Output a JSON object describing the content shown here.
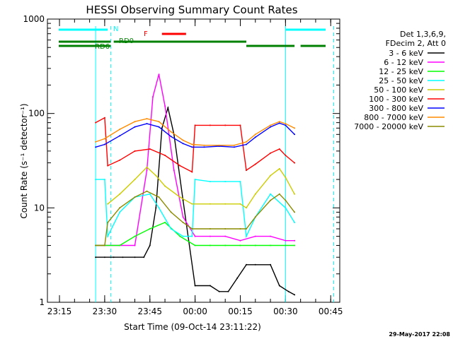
{
  "chart_data": {
    "type": "line",
    "title": "HESSI Observing Summary Count Rates",
    "xlabel": "Start Time (09-Oct-14 23:11:22)",
    "ylabel": "Count Rate (s⁻¹ detector⁻¹)",
    "y_scale": "log",
    "ylim": [
      1,
      1000
    ],
    "y_ticks": [
      1,
      10,
      100,
      1000
    ],
    "y_tick_labels": [
      "1",
      "10",
      "100",
      "1000"
    ],
    "xlim": [
      "23:11",
      "00:48"
    ],
    "x_ticks": [
      "23:15",
      "23:30",
      "23:45",
      "00:00",
      "00:15",
      "00:30",
      "00:45"
    ],
    "x_tick_labels": [
      "23:15",
      "23:30",
      "23:45",
      "00:00",
      "00:15",
      "00:30",
      "00:45"
    ],
    "grid": false,
    "legend_position": "right",
    "legend_header": [
      "Det 1,3,6,9,",
      "FDecim 2, Att 0"
    ],
    "series": [
      {
        "name": "3 - 6 keV",
        "color": "#000000",
        "x": [
          "23:27",
          "23:30",
          "23:33",
          "23:36",
          "23:40",
          "23:43",
          "23:45",
          "23:47",
          "23:49",
          "23:51",
          "23:53",
          "23:56",
          "00:00",
          "00:05",
          "00:08",
          "00:11",
          "00:14",
          "00:17",
          "00:20",
          "00:25",
          "00:28",
          "00:31",
          "00:33"
        ],
        "y": [
          3,
          3,
          3,
          3,
          3,
          3,
          4,
          10,
          70,
          115,
          60,
          12,
          1.5,
          1.5,
          1.3,
          1.3,
          1.8,
          2.5,
          2.5,
          2.5,
          1.5,
          1.3,
          1.2
        ]
      },
      {
        "name": "6 - 12 keV",
        "color": "#ff00ff",
        "x": [
          "23:27",
          "23:30",
          "23:35",
          "23:40",
          "23:44",
          "23:46",
          "23:48",
          "23:50",
          "23:53",
          "23:56",
          "00:00",
          "00:05",
          "00:10",
          "00:15",
          "00:20",
          "00:25",
          "00:30",
          "00:33"
        ],
        "y": [
          4,
          4,
          4,
          4,
          25,
          150,
          260,
          120,
          25,
          8,
          5,
          5,
          5,
          4.5,
          5,
          5,
          4.5,
          4.5
        ]
      },
      {
        "name": "12 - 25 keV",
        "color": "#00ff00",
        "x": [
          "23:27",
          "23:30",
          "23:35",
          "23:40",
          "23:45",
          "23:50",
          "23:55",
          "00:00",
          "00:05",
          "00:10",
          "00:15",
          "00:20",
          "00:25",
          "00:30",
          "00:33"
        ],
        "y": [
          4,
          4,
          4,
          5,
          6,
          7,
          5,
          4,
          4,
          4,
          4,
          4,
          4,
          4,
          4
        ]
      },
      {
        "name": "25 - 50 keV",
        "color": "#00ffff",
        "x": [
          "23:27",
          "23:30",
          "23:31",
          "23:35",
          "23:40",
          "23:45",
          "23:48",
          "23:52",
          "23:56",
          "23:59",
          "00:00",
          "00:05",
          "00:10",
          "00:15",
          "00:17",
          "00:20",
          "00:25",
          "00:30",
          "00:33"
        ],
        "y": [
          20,
          20,
          5,
          9,
          13,
          14,
          10,
          6,
          5,
          5,
          20,
          19,
          19,
          19,
          5,
          8,
          14,
          10,
          7
        ]
      },
      {
        "name": "50 - 100 keV",
        "color": "#cccc00",
        "x": [
          "23:31",
          "23:35",
          "23:40",
          "23:44",
          "23:47",
          "23:50",
          "23:55",
          "23:59",
          "00:05",
          "00:10",
          "00:15",
          "00:17",
          "00:20",
          "00:25",
          "00:28",
          "00:30",
          "00:33"
        ],
        "y": [
          11,
          14,
          20,
          27,
          22,
          17,
          13,
          11,
          11,
          11,
          11,
          10,
          14,
          22,
          26,
          21,
          14
        ]
      },
      {
        "name": "100 - 300 keV",
        "color": "#ff0000",
        "x": [
          "23:27",
          "23:30",
          "23:31",
          "23:35",
          "23:40",
          "23:45",
          "23:50",
          "23:55",
          "23:59",
          "00:00",
          "00:05",
          "00:10",
          "00:15",
          "00:17",
          "00:20",
          "00:25",
          "00:28",
          "00:30",
          "00:33"
        ],
        "y": [
          80,
          90,
          28,
          32,
          40,
          42,
          36,
          28,
          24,
          75,
          75,
          75,
          75,
          25,
          29,
          38,
          42,
          36,
          30
        ]
      },
      {
        "name": "300 - 800 keV",
        "color": "#0000ff",
        "x": [
          "23:27",
          "23:30",
          "23:35",
          "23:40",
          "23:44",
          "23:48",
          "23:52",
          "23:56",
          "23:59",
          "00:03",
          "00:08",
          "00:13",
          "00:17",
          "00:20",
          "00:25",
          "00:28",
          "00:30",
          "00:33"
        ],
        "y": [
          44,
          47,
          58,
          72,
          78,
          72,
          57,
          48,
          44,
          44,
          45,
          44,
          47,
          56,
          72,
          79,
          75,
          60
        ]
      },
      {
        "name": "800 - 7000 keV",
        "color": "#ff8c00",
        "x": [
          "23:27",
          "23:30",
          "23:35",
          "23:40",
          "23:44",
          "23:48",
          "23:52",
          "23:56",
          "23:59",
          "00:03",
          "00:08",
          "00:13",
          "00:17",
          "00:20",
          "00:25",
          "00:28",
          "00:30",
          "00:33"
        ],
        "y": [
          50,
          54,
          68,
          82,
          88,
          82,
          64,
          52,
          47,
          46,
          46,
          46,
          50,
          60,
          75,
          82,
          78,
          70
        ]
      },
      {
        "name": "7000 - 20000 keV",
        "color": "#8b8b00",
        "x": [
          "23:27",
          "23:30",
          "23:31",
          "23:35",
          "23:40",
          "23:44",
          "23:48",
          "23:52",
          "23:56",
          "23:59",
          "00:05",
          "00:10",
          "00:15",
          "00:17",
          "00:20",
          "00:25",
          "00:28",
          "00:30",
          "00:33"
        ],
        "y": [
          4,
          4,
          7,
          10,
          13,
          15,
          13,
          9,
          7,
          6,
          6,
          6,
          6,
          6,
          8,
          12,
          14,
          12,
          9
        ]
      }
    ],
    "annotations": [
      {
        "label": "N",
        "color": "#00ffff",
        "segments": [
          [
            "23:11",
            "23:31"
          ],
          [
            "00:30",
            "00:48"
          ]
        ]
      },
      {
        "label": "F",
        "color": "#ff0000",
        "segments": [
          [
            "23:49",
            "23:57"
          ]
        ]
      },
      {
        "label": "RD0",
        "color": "#008000",
        "segments": [
          [
            "23:11",
            "23:32"
          ],
          [
            "23:33",
            "00:17"
          ]
        ]
      },
      {
        "label": "RD6",
        "color": "#008000",
        "segments": [
          [
            "23:11",
            "23:32"
          ],
          [
            "00:17",
            "00:33"
          ],
          [
            "00:35",
            "00:49"
          ]
        ]
      }
    ],
    "vertical_markers": [
      {
        "x": "23:27",
        "style": "solid",
        "color": "#00ffff"
      },
      {
        "x": "23:32",
        "style": "dashed",
        "color": "#00ffff"
      },
      {
        "x": "00:30",
        "style": "solid",
        "color": "#00ffff"
      },
      {
        "x": "00:46",
        "style": "dashed",
        "color": "#00ffff"
      }
    ]
  },
  "footer": {
    "date_stamp": "29-May-2017 22:08"
  }
}
